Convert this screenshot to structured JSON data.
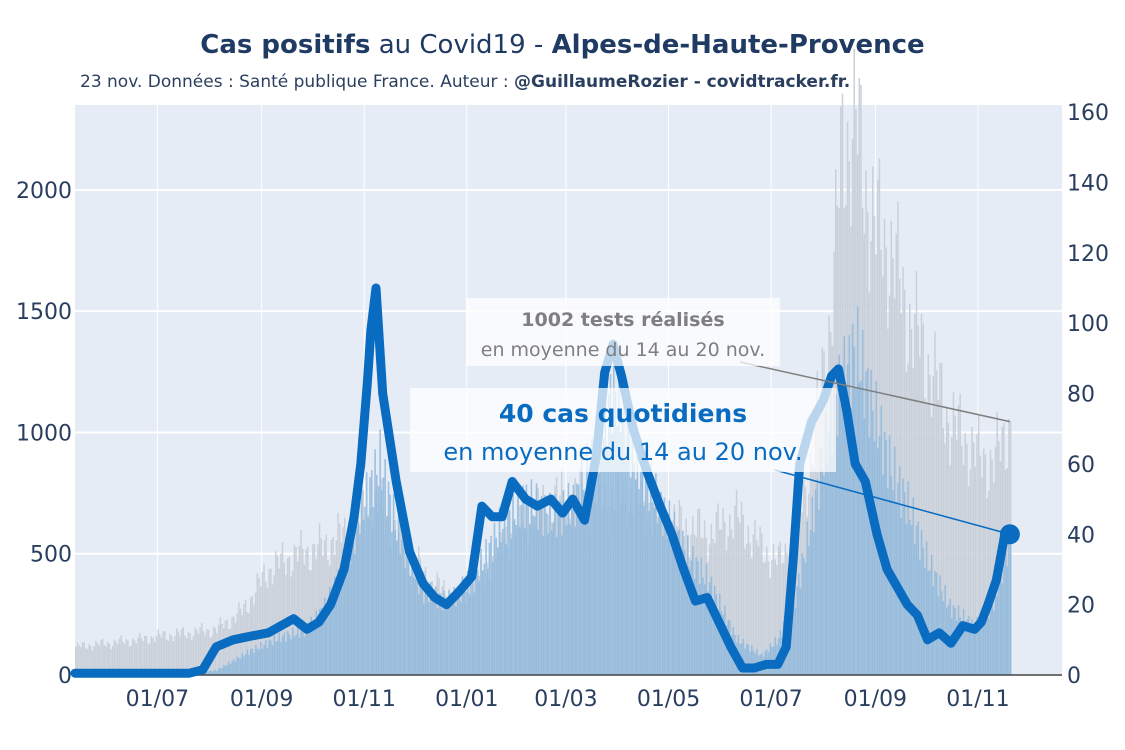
{
  "title": {
    "part1_bold": "Cas positifs",
    "part2": " au Covid19 - ",
    "part3_bold": "Alpes-de-Haute-Provence"
  },
  "subtitle": {
    "text": "23 nov. Données : Santé publique France. Auteur : ",
    "author_bold": "@GuillaumeRozier - covidtracker.fr."
  },
  "annotations": {
    "tests_bold": "1002 tests réalisés",
    "tests_sub": "en moyenne du 14 au 20 nov.",
    "cases_bold": "40 cas quotidiens",
    "cases_sub": "en moyenne du 14 au 20 nov."
  },
  "colors": {
    "plot_bg": "#e5ecf6",
    "cases_line": "#0a6cc0",
    "cases_bars": "#8fb9dc",
    "tests_bars": "#c9d0da",
    "annotation_cases": "#0a6cc0",
    "annotation_tests": "#7f7f7f",
    "text": "#2a3f5f"
  },
  "chart_data": {
    "type": "line",
    "x_tick_labels": [
      "01/07",
      "01/09",
      "01/11",
      "01/01",
      "01/03",
      "01/05",
      "01/07",
      "01/09",
      "01/11"
    ],
    "x_tick_dates": [
      "2020-07-01",
      "2020-09-01",
      "2020-11-01",
      "2021-01-01",
      "2021-03-01",
      "2021-05-01",
      "2021-07-01",
      "2021-09-01",
      "2021-11-01"
    ],
    "xlim": [
      "2020-05-13",
      "2021-12-21"
    ],
    "y_left": {
      "label": "",
      "ylim": [
        0,
        2350
      ],
      "ticks": [
        0,
        500,
        1000,
        1500,
        2000
      ]
    },
    "y_right": {
      "label": "",
      "ylim": [
        0,
        162
      ],
      "ticks": [
        0,
        20,
        40,
        60,
        80,
        100,
        120,
        140,
        160
      ]
    },
    "grid": true,
    "series": [
      {
        "axis": "right",
        "style": "line",
        "x": [
          "2020-05-13",
          "2020-06-01",
          "2020-07-01",
          "2020-07-20",
          "2020-07-28",
          "2020-08-05",
          "2020-08-15",
          "2020-08-25",
          "2020-09-05",
          "2020-09-20",
          "2020-09-28",
          "2020-10-05",
          "2020-10-12",
          "2020-10-20",
          "2020-10-26",
          "2020-10-30",
          "2020-11-03",
          "2020-11-05",
          "2020-11-08",
          "2020-11-12",
          "2020-11-20",
          "2020-11-28",
          "2020-12-06",
          "2020-12-13",
          "2020-12-20",
          "2020-12-28",
          "2021-01-04",
          "2021-01-10",
          "2021-01-16",
          "2021-01-22",
          "2021-01-28",
          "2021-02-05",
          "2021-02-12",
          "2021-02-20",
          "2021-02-27",
          "2021-03-05",
          "2021-03-12",
          "2021-03-19",
          "2021-03-24",
          "2021-03-29",
          "2021-04-03",
          "2021-04-10",
          "2021-04-18",
          "2021-04-26",
          "2021-05-03",
          "2021-05-10",
          "2021-05-17",
          "2021-05-24",
          "2021-05-31",
          "2021-06-07",
          "2021-06-14",
          "2021-06-21",
          "2021-06-28",
          "2021-07-05",
          "2021-07-10",
          "2021-07-14",
          "2021-07-18",
          "2021-07-25",
          "2021-08-01",
          "2021-08-06",
          "2021-08-10",
          "2021-08-15",
          "2021-08-20",
          "2021-08-26",
          "2021-09-02",
          "2021-09-08",
          "2021-09-14",
          "2021-09-20",
          "2021-09-26",
          "2021-10-02",
          "2021-10-09",
          "2021-10-16",
          "2021-10-23",
          "2021-10-30",
          "2021-11-03",
          "2021-11-07",
          "2021-11-12",
          "2021-11-17",
          "2021-11-20"
        ],
        "values": [
          0.5,
          0.5,
          0.5,
          0.5,
          1.5,
          8,
          10,
          11,
          12,
          16,
          13,
          15,
          20,
          30,
          45,
          60,
          84,
          98,
          110,
          80,
          55,
          35,
          26,
          22,
          20,
          24,
          28,
          48,
          45,
          45,
          55,
          50,
          48,
          50,
          46,
          50,
          44,
          62,
          86,
          94,
          85,
          70,
          58,
          48,
          40,
          30,
          21,
          22,
          15,
          8,
          2,
          2,
          3,
          3,
          8,
          32,
          60,
          72,
          78,
          85,
          87,
          75,
          60,
          55,
          40,
          30,
          25,
          20,
          17,
          10,
          12,
          9,
          14,
          13,
          15,
          20,
          27,
          40,
          40
        ]
      },
      {
        "axis": "left",
        "style": "bars",
        "x": [
          "2020-05-13",
          "2020-06-01",
          "2020-07-01",
          "2020-07-20",
          "2020-08-05",
          "2020-08-25",
          "2020-09-10",
          "2020-09-28",
          "2020-10-10",
          "2020-10-22",
          "2020-11-01",
          "2020-11-10",
          "2020-11-20",
          "2020-12-05",
          "2020-12-20",
          "2021-01-05",
          "2021-01-20",
          "2021-02-05",
          "2021-02-20",
          "2021-03-05",
          "2021-03-20",
          "2021-03-29",
          "2021-04-10",
          "2021-04-25",
          "2021-05-10",
          "2021-05-25",
          "2021-06-10",
          "2021-06-25",
          "2021-07-05",
          "2021-07-15",
          "2021-07-25",
          "2021-08-05",
          "2021-08-12",
          "2021-08-20",
          "2021-08-30",
          "2021-09-10",
          "2021-09-20",
          "2021-10-01",
          "2021-10-15",
          "2021-10-30",
          "2021-11-10",
          "2021-11-20"
        ],
        "values": [
          5,
          5,
          5,
          8,
          20,
          100,
          150,
          190,
          300,
          500,
          720,
          880,
          600,
          350,
          300,
          400,
          600,
          720,
          650,
          700,
          950,
          1200,
          900,
          700,
          520,
          380,
          150,
          80,
          150,
          320,
          650,
          1050,
          1200,
          1350,
          1100,
          850,
          700,
          480,
          280,
          200,
          300,
          580
        ]
      },
      {
        "axis": "right",
        "style": "bars",
        "x": [
          "2020-05-13",
          "2020-06-01",
          "2020-06-20",
          "2020-07-01",
          "2020-07-20",
          "2020-08-05",
          "2020-08-20",
          "2020-09-05",
          "2020-09-20",
          "2020-10-05",
          "2020-10-20",
          "2020-11-01",
          "2020-11-10",
          "2020-11-25",
          "2020-12-10",
          "2020-12-25",
          "2021-01-10",
          "2021-01-25",
          "2021-02-10",
          "2021-02-25",
          "2021-03-10",
          "2021-03-25",
          "2021-04-10",
          "2021-04-25",
          "2021-05-10",
          "2021-05-25",
          "2021-06-10",
          "2021-06-25",
          "2021-07-05",
          "2021-07-15",
          "2021-07-25",
          "2021-08-05",
          "2021-08-12",
          "2021-08-20",
          "2021-08-25",
          "2021-09-01",
          "2021-09-10",
          "2021-09-20",
          "2021-10-01",
          "2021-10-15",
          "2021-11-01",
          "2021-11-10",
          "2021-11-20"
        ],
        "values": [
          8,
          9,
          10,
          11,
          12,
          13,
          18,
          30,
          34,
          36,
          40,
          46,
          48,
          36,
          26,
          22,
          28,
          40,
          46,
          50,
          50,
          50,
          50,
          45,
          42,
          40,
          45,
          36,
          32,
          40,
          62,
          102,
          150,
          156,
          140,
          126,
          120,
          102,
          90,
          72,
          62,
          60,
          72
        ]
      }
    ]
  }
}
